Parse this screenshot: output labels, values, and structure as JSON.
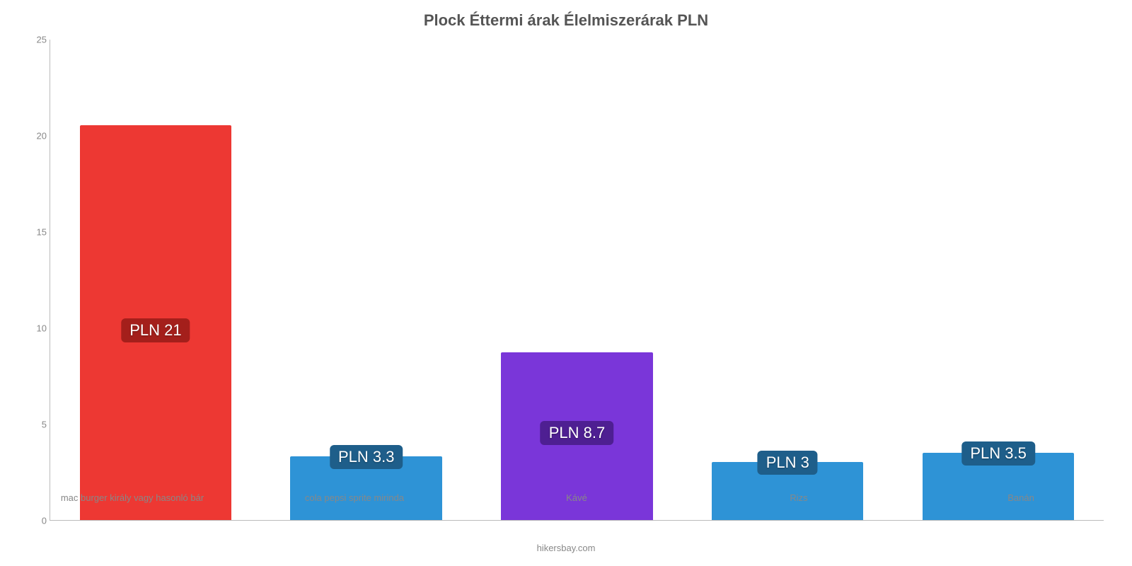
{
  "chart": {
    "type": "bar",
    "title": "Plock Éttermi árak Élelmiszerárak PLN",
    "title_fontsize": 22,
    "title_color": "#555555",
    "background_color": "#ffffff",
    "axis_color": "#bbbbbb",
    "tick_font_color": "#888888",
    "tick_fontsize": 13,
    "credit": "hikersbay.com",
    "ylim": [
      0,
      25
    ],
    "ytick_step": 5,
    "yticks": [
      0,
      5,
      10,
      15,
      20,
      25
    ],
    "bar_width_pct": 72,
    "value_label_fontsize": 22,
    "value_label_padding": "4px 12px",
    "value_label_radius": 6,
    "categories": [
      "mac burger király vagy hasonló bár",
      "cola pepsi sprite mirinda",
      "Kávé",
      "Rizs",
      "Banán"
    ],
    "values": [
      20.5,
      3.3,
      8.7,
      3.0,
      3.5
    ],
    "value_labels": [
      "PLN 21",
      "PLN 3.3",
      "PLN 8.7",
      "PLN 3",
      "PLN 3.5"
    ],
    "bar_colors": [
      "#ed3833",
      "#2e93d6",
      "#7a36d9",
      "#2e93d6",
      "#2e93d6"
    ],
    "value_label_bg": [
      "#a41f1b",
      "#1e5e8a",
      "#4e1f92",
      "#1e5e8a",
      "#1e5e8a"
    ],
    "value_label_mode": [
      "inside",
      "above",
      "inside",
      "above",
      "above"
    ]
  }
}
